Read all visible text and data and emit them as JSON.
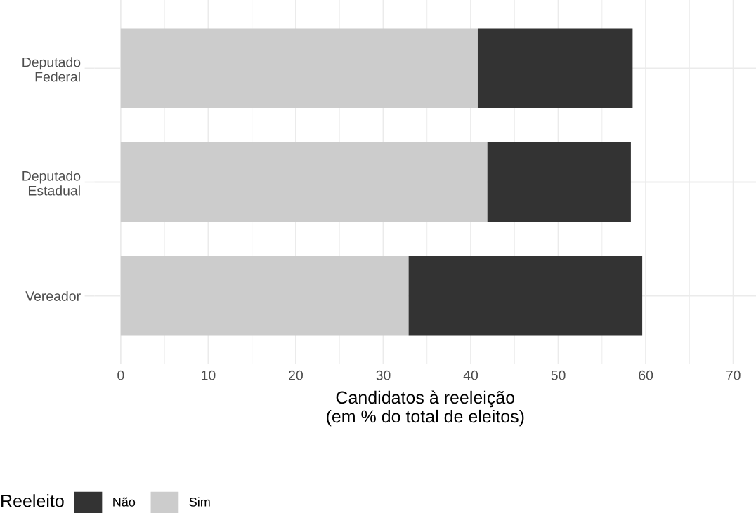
{
  "chart_data": {
    "type": "bar",
    "orientation": "horizontal",
    "stacked": true,
    "categories": [
      "Deputado\nFederal",
      "Deputado\nEstadual",
      "Vereador"
    ],
    "series": [
      {
        "name": "Sim",
        "color": "#cccccc",
        "values": [
          40.8,
          41.9,
          32.9
        ]
      },
      {
        "name": "Não",
        "color": "#333333",
        "values": [
          17.7,
          16.4,
          26.7
        ]
      }
    ],
    "xlabel": "Candidatos à reeleição\n(em % do total de eleitos)",
    "legend_title": "Reeleito",
    "legend": "bottom",
    "xlim": [
      -3.0,
      72.6
    ],
    "xticks": [
      0,
      10,
      20,
      30,
      40,
      50,
      60,
      70
    ],
    "grid": true
  }
}
